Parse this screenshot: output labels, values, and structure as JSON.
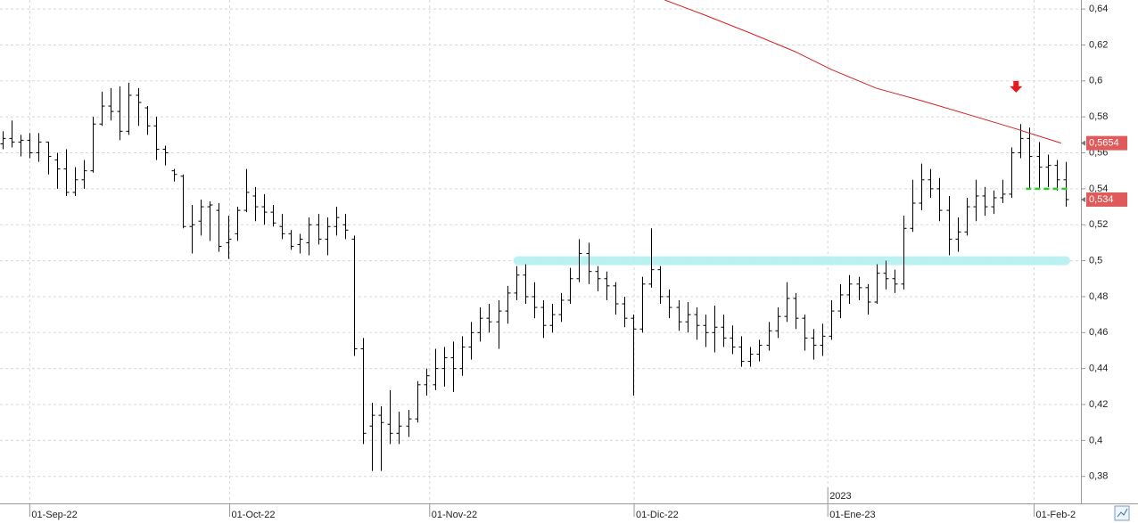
{
  "chart_data": {
    "type": "ohlc",
    "xlim": [
      -0.3,
      119.7
    ],
    "ylim": [
      0.365,
      0.645
    ],
    "xticks": [
      {
        "value": 3,
        "label": "01-Sep-22"
      },
      {
        "value": 25.2,
        "label": "01-Oct-22"
      },
      {
        "value": 47.4,
        "label": "01-Nov-22"
      },
      {
        "value": 70.1,
        "label": "01-Dic-22"
      },
      {
        "value": 91.6,
        "label": "01-Ene-23"
      },
      {
        "value": 114.5,
        "label": "01-Feb-2"
      }
    ],
    "yticks": [
      {
        "value": 0.38,
        "label": "0,38"
      },
      {
        "value": 0.4,
        "label": "0,4"
      },
      {
        "value": 0.42,
        "label": "0,42"
      },
      {
        "value": 0.44,
        "label": "0,44"
      },
      {
        "value": 0.46,
        "label": "0,46"
      },
      {
        "value": 0.48,
        "label": "0,48"
      },
      {
        "value": 0.5,
        "label": "0,5"
      },
      {
        "value": 0.52,
        "label": "0,52"
      },
      {
        "value": 0.54,
        "label": "0,54"
      },
      {
        "value": 0.56,
        "label": "0,56"
      },
      {
        "value": 0.58,
        "label": "0,58"
      },
      {
        "value": 0.6,
        "label": "0,6"
      },
      {
        "value": 0.62,
        "label": "0,62"
      },
      {
        "value": 0.64,
        "label": "0,64"
      }
    ],
    "grid": true,
    "year_marks": [
      {
        "x": 91.6,
        "label": "2023"
      }
    ],
    "series": [
      {
        "kind": "ohlc",
        "color": "#000000",
        "values": [
          [
            0.565,
            0.572,
            0.562,
            0.568
          ],
          [
            0.568,
            0.578,
            0.563,
            0.566
          ],
          [
            0.566,
            0.57,
            0.558,
            0.567
          ],
          [
            0.567,
            0.571,
            0.557,
            0.56
          ],
          [
            0.56,
            0.571,
            0.555,
            0.566
          ],
          [
            0.566,
            0.566,
            0.548,
            0.558
          ],
          [
            0.556,
            0.56,
            0.54,
            0.551
          ],
          [
            0.551,
            0.562,
            0.536,
            0.538
          ],
          [
            0.538,
            0.552,
            0.536,
            0.545
          ],
          [
            0.545,
            0.556,
            0.54,
            0.55
          ],
          [
            0.55,
            0.58,
            0.549,
            0.576
          ],
          [
            0.576,
            0.594,
            0.575,
            0.586
          ],
          [
            0.586,
            0.596,
            0.578,
            0.583
          ],
          [
            0.583,
            0.597,
            0.567,
            0.572
          ],
          [
            0.572,
            0.599,
            0.57,
            0.592
          ],
          [
            0.592,
            0.596,
            0.575,
            0.588
          ],
          [
            0.585,
            0.586,
            0.57,
            0.575
          ],
          [
            0.575,
            0.58,
            0.556,
            0.562
          ],
          [
            0.562,
            0.564,
            0.553,
            0.56
          ],
          [
            0.55,
            0.551,
            0.544,
            0.548
          ],
          [
            0.547,
            0.548,
            0.518,
            0.519
          ],
          [
            0.519,
            0.531,
            0.504,
            0.52
          ],
          [
            0.522,
            0.534,
            0.514,
            0.53
          ],
          [
            0.53,
            0.533,
            0.511,
            0.531
          ],
          [
            0.528,
            0.532,
            0.505,
            0.508
          ],
          [
            0.51,
            0.525,
            0.501,
            0.512
          ],
          [
            0.515,
            0.53,
            0.511,
            0.528
          ],
          [
            0.528,
            0.551,
            0.527,
            0.538
          ],
          [
            0.536,
            0.541,
            0.522,
            0.53
          ],
          [
            0.53,
            0.537,
            0.52,
            0.527
          ],
          [
            0.527,
            0.531,
            0.519,
            0.521
          ],
          [
            0.519,
            0.526,
            0.512,
            0.515
          ],
          [
            0.515,
            0.517,
            0.506,
            0.508
          ],
          [
            0.509,
            0.515,
            0.504,
            0.512
          ],
          [
            0.51,
            0.524,
            0.503,
            0.52
          ],
          [
            0.52,
            0.526,
            0.509,
            0.512
          ],
          [
            0.512,
            0.524,
            0.503,
            0.519
          ],
          [
            0.519,
            0.53,
            0.514,
            0.524
          ],
          [
            0.52,
            0.526,
            0.512,
            0.517
          ],
          [
            0.512,
            0.514,
            0.447,
            0.451
          ],
          [
            0.451,
            0.457,
            0.398,
            0.404
          ],
          [
            0.408,
            0.421,
            0.383,
            0.414
          ],
          [
            0.414,
            0.419,
            0.383,
            0.41
          ],
          [
            0.409,
            0.428,
            0.398,
            0.404
          ],
          [
            0.404,
            0.416,
            0.398,
            0.408
          ],
          [
            0.408,
            0.417,
            0.402,
            0.412
          ],
          [
            0.412,
            0.433,
            0.41,
            0.431
          ],
          [
            0.431,
            0.44,
            0.425,
            0.436
          ],
          [
            0.431,
            0.451,
            0.428,
            0.44
          ],
          [
            0.44,
            0.452,
            0.43,
            0.446
          ],
          [
            0.446,
            0.455,
            0.427,
            0.44
          ],
          [
            0.44,
            0.458,
            0.436,
            0.452
          ],
          [
            0.452,
            0.466,
            0.445,
            0.46
          ],
          [
            0.46,
            0.474,
            0.455,
            0.468
          ],
          [
            0.468,
            0.476,
            0.46,
            0.466
          ],
          [
            0.466,
            0.478,
            0.451,
            0.472
          ],
          [
            0.472,
            0.486,
            0.465,
            0.482
          ],
          [
            0.482,
            0.497,
            0.478,
            0.492
          ],
          [
            0.492,
            0.498,
            0.476,
            0.48
          ],
          [
            0.48,
            0.488,
            0.468,
            0.474
          ],
          [
            0.474,
            0.478,
            0.457,
            0.464
          ],
          [
            0.464,
            0.476,
            0.46,
            0.47
          ],
          [
            0.47,
            0.482,
            0.466,
            0.478
          ],
          [
            0.478,
            0.496,
            0.476,
            0.49
          ],
          [
            0.49,
            0.512,
            0.488,
            0.504
          ],
          [
            0.504,
            0.51,
            0.487,
            0.494
          ],
          [
            0.494,
            0.497,
            0.483,
            0.49
          ],
          [
            0.49,
            0.494,
            0.478,
            0.486
          ],
          [
            0.486,
            0.488,
            0.47,
            0.476
          ],
          [
            0.476,
            0.48,
            0.463,
            0.468
          ],
          [
            0.468,
            0.47,
            0.425,
            0.462
          ],
          [
            0.462,
            0.491,
            0.46,
            0.487
          ],
          [
            0.487,
            0.518,
            0.485,
            0.495
          ],
          [
            0.495,
            0.497,
            0.476,
            0.48
          ],
          [
            0.48,
            0.484,
            0.468,
            0.474
          ],
          [
            0.474,
            0.478,
            0.461,
            0.466
          ],
          [
            0.466,
            0.477,
            0.46,
            0.47
          ],
          [
            0.47,
            0.474,
            0.456,
            0.464
          ],
          [
            0.464,
            0.47,
            0.452,
            0.46
          ],
          [
            0.46,
            0.475,
            0.449,
            0.463
          ],
          [
            0.463,
            0.47,
            0.452,
            0.457
          ],
          [
            0.457,
            0.464,
            0.448,
            0.452
          ],
          [
            0.452,
            0.458,
            0.441,
            0.444
          ],
          [
            0.444,
            0.452,
            0.441,
            0.448
          ],
          [
            0.448,
            0.456,
            0.444,
            0.453
          ],
          [
            0.453,
            0.466,
            0.45,
            0.461
          ],
          [
            0.461,
            0.474,
            0.457,
            0.469
          ],
          [
            0.469,
            0.488,
            0.466,
            0.479
          ],
          [
            0.479,
            0.482,
            0.462,
            0.468
          ],
          [
            0.468,
            0.47,
            0.45,
            0.457
          ],
          [
            0.457,
            0.462,
            0.445,
            0.453
          ],
          [
            0.453,
            0.465,
            0.447,
            0.458
          ],
          [
            0.458,
            0.478,
            0.456,
            0.472
          ],
          [
            0.472,
            0.487,
            0.468,
            0.481
          ],
          [
            0.481,
            0.492,
            0.476,
            0.487
          ],
          [
            0.487,
            0.491,
            0.478,
            0.485
          ],
          [
            0.485,
            0.487,
            0.47,
            0.477
          ],
          [
            0.477,
            0.498,
            0.476,
            0.493
          ],
          [
            0.493,
            0.5,
            0.484,
            0.49
          ],
          [
            0.49,
            0.495,
            0.482,
            0.487
          ],
          [
            0.487,
            0.525,
            0.484,
            0.518
          ],
          [
            0.518,
            0.545,
            0.516,
            0.532
          ],
          [
            0.532,
            0.554,
            0.528,
            0.545
          ],
          [
            0.545,
            0.551,
            0.535,
            0.54
          ],
          [
            0.54,
            0.546,
            0.522,
            0.528
          ],
          [
            0.528,
            0.536,
            0.503,
            0.512
          ],
          [
            0.512,
            0.524,
            0.505,
            0.516
          ],
          [
            0.516,
            0.535,
            0.514,
            0.53
          ],
          [
            0.53,
            0.545,
            0.522,
            0.536
          ],
          [
            0.536,
            0.541,
            0.525,
            0.53
          ],
          [
            0.53,
            0.539,
            0.526,
            0.535
          ],
          [
            0.535,
            0.545,
            0.532,
            0.537
          ],
          [
            0.537,
            0.563,
            0.535,
            0.56
          ],
          [
            0.56,
            0.576,
            0.557,
            0.568
          ],
          [
            0.568,
            0.574,
            0.54,
            0.558
          ],
          [
            0.558,
            0.566,
            0.54,
            0.552
          ],
          [
            0.552,
            0.559,
            0.541,
            0.553
          ],
          [
            0.553,
            0.556,
            0.539,
            0.545
          ],
          [
            0.545,
            0.555,
            0.53,
            0.534
          ]
        ]
      },
      {
        "kind": "line",
        "color": "#d42020",
        "x": [
          73.5,
          78,
          83,
          88,
          92,
          97,
          102,
          107,
          112,
          117.5
        ],
        "values": [
          0.645,
          0.6365,
          0.6266,
          0.6162,
          0.6063,
          0.5959,
          0.589,
          0.5816,
          0.5741,
          0.5654
        ]
      }
    ],
    "last_labels": [
      {
        "value": 0.5654,
        "label": "0,5654",
        "color": "#e05a5a"
      },
      {
        "value": 0.534,
        "label": "0,534",
        "color": "#e05a5a"
      }
    ],
    "hlines": [
      {
        "value": 0.5,
        "from": 56.7,
        "to": 118.5,
        "color": "#b4f0f0",
        "style": "band"
      },
      {
        "value": 0.54,
        "from": 113.6,
        "to": 118.5,
        "color": "#2ecc2e",
        "style": "dashed"
      }
    ],
    "arrows": [
      {
        "x": 112.5,
        "y": 0.597,
        "color": "#e8191c"
      }
    ]
  }
}
